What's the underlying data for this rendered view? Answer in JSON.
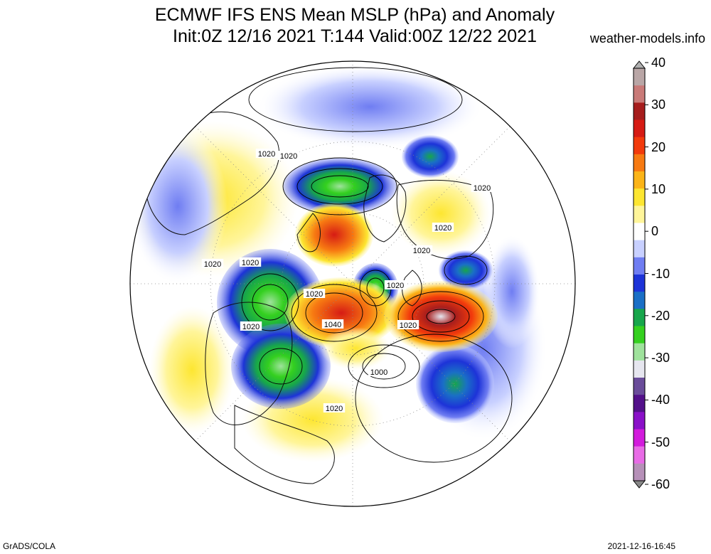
{
  "header": {
    "title_line1": "ECMWF IFS ENS Mean MSLP (hPa) and Anomaly",
    "title_line2": "Init:0Z 12/16 2021  T:144 Valid:00Z 12/22 2021",
    "credit": "weather-models.info"
  },
  "footer": {
    "left": "GrADS/COLA",
    "right": "2021-12-16-16:45"
  },
  "colorbar": {
    "labels": [
      "40",
      "30",
      "20",
      "10",
      "0",
      "-10",
      "-20",
      "-30",
      "-40",
      "-50",
      "-60"
    ],
    "colors": [
      "#b9a6a6",
      "#c97a78",
      "#a61d1d",
      "#d61b14",
      "#f23a0c",
      "#f77a12",
      "#fbb418",
      "#fde631",
      "#fff59a",
      "#ffffff",
      "#c8d0ff",
      "#6f7df2",
      "#1d33d8",
      "#1a6fc6",
      "#17a64b",
      "#34d01f",
      "#9fe29c",
      "#e6e6ef",
      "#6a4c9a",
      "#53108a",
      "#8a10c8",
      "#d21bdc",
      "#e86be6",
      "#b690b8"
    ]
  },
  "map": {
    "projection": "polar-stereographic",
    "contour_labels": [
      "1020",
      "1020",
      "1020",
      "1020",
      "1020",
      "1020",
      "1020",
      "1020",
      "1020",
      "1040",
      "1020",
      "1020",
      "1000",
      "1020"
    ]
  }
}
